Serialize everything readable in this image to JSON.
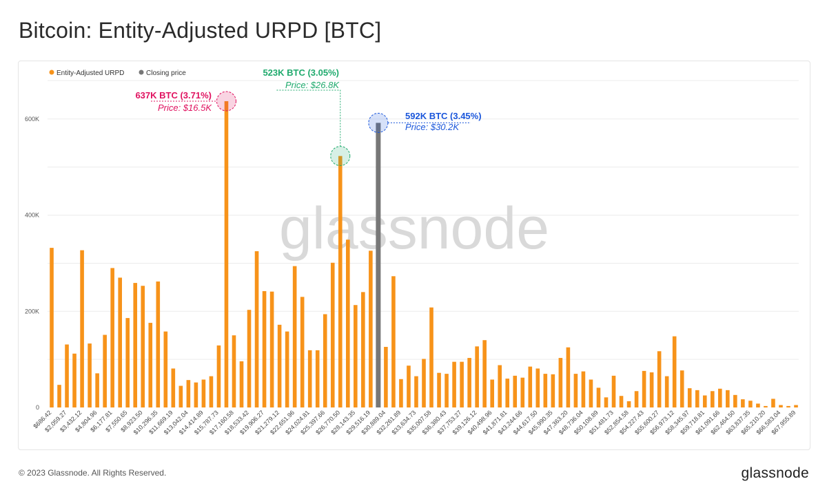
{
  "title": "Bitcoin: Entity-Adjusted URPD [BTC]",
  "watermark": "glassnode",
  "footer": "© 2023 Glassnode. All Rights Reserved.",
  "brand": "glassnode",
  "colors": {
    "bar": "#f7931a",
    "closing": "#777777",
    "grid": "#ececec",
    "pink": "#e0115f",
    "green": "#1faa6d",
    "blue": "#1a56db"
  },
  "annotations": [
    {
      "key": "pink",
      "value_label": "637K BTC (3.71%)",
      "price_label": "Price: $16.5K",
      "bar_index": 24
    },
    {
      "key": "green",
      "value_label": "523K BTC (3.05%)",
      "price_label": "Price: $26.8K",
      "bar_index": 39
    },
    {
      "key": "blue",
      "value_label": "592K BTC (3.45%)",
      "price_label": "Price: $30.2K",
      "bar_index": 44
    }
  ],
  "chart_data": {
    "type": "bar",
    "title": "Bitcoin: Entity-Adjusted URPD [BTC]",
    "legend": [
      "Entity-Adjusted URPD",
      "Closing price"
    ],
    "legend_position": "top-left",
    "grid": true,
    "ylim": [
      0,
      680000
    ],
    "yticks": [
      0,
      200000,
      400000,
      600000
    ],
    "ytick_labels": [
      "0",
      "200K",
      "400K",
      "600K"
    ],
    "xtick_labels": [
      "$686.42",
      "$2,059.27",
      "$3,432.12",
      "$4,804.96",
      "$6,177.81",
      "$7,550.65",
      "$8,923.50",
      "$10,296.35",
      "$11,669.19",
      "$13,042.04",
      "$14,414.89",
      "$15,787.73",
      "$17,160.58",
      "$18,533.42",
      "$19,906.27",
      "$21,279.12",
      "$22,651.96",
      "$24,024.81",
      "$25,397.66",
      "$26,770.50",
      "$28,143.35",
      "$29,516.19",
      "$30,889.04",
      "$32,261.89",
      "$33,634.73",
      "$35,007.58",
      "$36,380.43",
      "$37,753.27",
      "$39,126.12",
      "$40,498.96",
      "$41,871.81",
      "$43,244.66",
      "$44,617.50",
      "$45,990.35",
      "$47,363.20",
      "$48,736.04",
      "$50,108.89",
      "$51,481.73",
      "$52,854.58",
      "$54,227.43",
      "$55,600.27",
      "$56,973.12",
      "$58,345.97",
      "$59,718.81",
      "$61,091.66",
      "$62,464.50",
      "$63,837.35",
      "$65,210.20",
      "$66,583.04",
      "$67,955.89"
    ],
    "closing_index": 44,
    "values": [
      332000,
      47000,
      131000,
      112000,
      327000,
      133000,
      71000,
      151000,
      290000,
      270000,
      186000,
      259000,
      253000,
      176000,
      262000,
      158000,
      81000,
      45000,
      57000,
      52000,
      58000,
      65000,
      129000,
      637000,
      150000,
      96000,
      203000,
      325000,
      242000,
      241000,
      172000,
      158000,
      294000,
      230000,
      119000,
      119000,
      194000,
      301000,
      523000,
      349000,
      213000,
      240000,
      326000,
      592000,
      126000,
      273000,
      59000,
      87000,
      65000,
      101000,
      208000,
      72000,
      70000,
      95000,
      95000,
      103000,
      127000,
      140000,
      58000,
      88000,
      60000,
      66000,
      62000,
      85000,
      81000,
      70000,
      69000,
      103000,
      125000,
      70000,
      75000,
      58000,
      41000,
      21000,
      66000,
      24000,
      13000,
      34000,
      76000,
      73000,
      117000,
      65000,
      148000,
      77000,
      40000,
      36000,
      25000,
      34000,
      39000,
      36000,
      26000,
      17000,
      14000,
      8000,
      3000,
      18000,
      5000,
      3000,
      5000
    ]
  }
}
